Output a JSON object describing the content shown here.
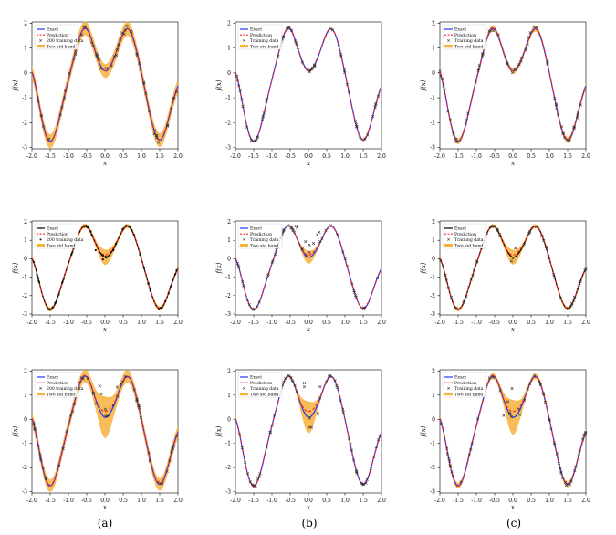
{
  "figure": {
    "subfigure_labels": [
      "(a)",
      "(b)",
      "(c)"
    ]
  },
  "colors": {
    "exact_black": "#000000",
    "exact_blue": "#1f35ff",
    "prediction": "#ff2020",
    "training": "#000000",
    "band": "#f7b23b"
  },
  "chart_data": [
    {
      "type": "line",
      "row": 1,
      "col": 1,
      "xlabel": "x",
      "ylabel": "f(x)",
      "xlim": [
        -2.0,
        2.0
      ],
      "ylim": [
        -3,
        2
      ],
      "xticks": [
        "-2.0",
        "-1.5",
        "-1.0",
        "-0.5",
        "0.0",
        "0.5",
        "1.0",
        "1.5",
        "2.0"
      ],
      "yticks": [
        "2",
        "1",
        "0",
        "-1",
        "-2",
        "-3"
      ],
      "legend": [
        "Exact",
        "Prediction",
        "200 training data",
        "Two std band"
      ],
      "exact_color": "exact_blue",
      "training_marker": "x",
      "outliers": 0,
      "noise": 0.14,
      "band": 0.28
    },
    {
      "type": "line",
      "row": 1,
      "col": 2,
      "xlabel": "x",
      "ylabel": "f(x)",
      "xlim": [
        -2.0,
        2.0
      ],
      "ylim": [
        -3,
        2
      ],
      "xticks": [
        "-2.0",
        "-1.5",
        "-1.0",
        "-0.5",
        "0.0",
        "0.5",
        "1.0",
        "1.5",
        "2.0"
      ],
      "yticks": [
        "2",
        "1",
        "0",
        "-1",
        "-2",
        "-3"
      ],
      "legend": [
        "Exact",
        "Prediction",
        "Training data",
        "Two std band"
      ],
      "exact_color": "exact_blue",
      "training_marker": "x",
      "outliers": 0,
      "noise": 0.05,
      "band": 0.06
    },
    {
      "type": "line",
      "row": 1,
      "col": 3,
      "xlabel": "x",
      "ylabel": "f(x)",
      "xlim": [
        -2.0,
        2.0
      ],
      "ylim": [
        -3,
        2
      ],
      "xticks": [
        "-2.0",
        "-1.5",
        "-1.0",
        "-0.5",
        "0.0",
        "0.5",
        "1.0",
        "1.5",
        "2.0"
      ],
      "yticks": [
        "2",
        "1",
        "0",
        "-1",
        "-2",
        "-3"
      ],
      "legend": [
        "Exact",
        "Prediction",
        "Training data",
        "Two std band"
      ],
      "exact_color": "exact_blue",
      "training_marker": "x",
      "outliers": 0,
      "noise": 0.1,
      "band": 0.12
    },
    {
      "type": "line",
      "row": 2,
      "col": 1,
      "xlabel": "x",
      "ylabel": "f(x)",
      "xlim": [
        -2.0,
        2.0
      ],
      "ylim": [
        -3,
        2
      ],
      "xticks": [
        "-2.0",
        "-1.5",
        "-1.0",
        "-0.5",
        "0.0",
        "0.5",
        "1.0",
        "1.5",
        "2.0"
      ],
      "yticks": [
        "2",
        "1",
        "0",
        "-1",
        "-2",
        "-3"
      ],
      "legend": [
        "Exact",
        "Prediction",
        "200 training data",
        "Two std band"
      ],
      "exact_color": "exact_black",
      "training_marker": "dot",
      "outliers": 1,
      "noise": 0.06,
      "band": 0.12
    },
    {
      "type": "line",
      "row": 2,
      "col": 2,
      "xlabel": "x",
      "ylabel": "f(x)",
      "xlim": [
        -2.0,
        2.0
      ],
      "ylim": [
        -3,
        2
      ],
      "xticks": [
        "-2.0",
        "-1.5",
        "-1.0",
        "-0.5",
        "0.0",
        "0.5",
        "1.0",
        "1.5",
        "2.0"
      ],
      "yticks": [
        "2",
        "1",
        "0",
        "-1",
        "-2",
        "-3"
      ],
      "legend": [
        "Exact",
        "Prediction",
        "Training data",
        "Two std band"
      ],
      "exact_color": "exact_blue",
      "training_marker": "x",
      "outliers": 1,
      "noise": 0.04,
      "band": 0.05
    },
    {
      "type": "line",
      "row": 2,
      "col": 3,
      "xlabel": "x",
      "ylabel": "f(x)",
      "xlim": [
        -2.0,
        2.0
      ],
      "ylim": [
        -3,
        2
      ],
      "xticks": [
        "-2.0",
        "-1.5",
        "-1.0",
        "-0.5",
        "0.0",
        "0.5",
        "1.0",
        "1.5",
        "2.0"
      ],
      "yticks": [
        "2",
        "1",
        "0",
        "-1",
        "-2",
        "-3"
      ],
      "legend": [
        "Exact",
        "Prediction",
        "Training data",
        "Two std band"
      ],
      "exact_color": "exact_black",
      "training_marker": "x",
      "outliers": 1,
      "noise": 0.05,
      "band": 0.1
    },
    {
      "type": "line",
      "row": 3,
      "col": 1,
      "xlabel": "x",
      "ylabel": "f(x)",
      "xlim": [
        -2.0,
        2.0
      ],
      "ylim": [
        -3,
        2
      ],
      "xticks": [
        "-2.0",
        "-1.5",
        "-1.0",
        "-0.5",
        "0.0",
        "0.5",
        "1.0",
        "1.5",
        "2.0"
      ],
      "yticks": [
        "2",
        "1",
        "0",
        "-1",
        "-2",
        "-3"
      ],
      "legend": [
        "Exact",
        "Prediction",
        "200 training data",
        "Two std band"
      ],
      "exact_color": "exact_blue",
      "training_marker": "x",
      "outliers": 2,
      "noise": 0.09,
      "band": 0.26
    },
    {
      "type": "line",
      "row": 3,
      "col": 2,
      "xlabel": "x",
      "ylabel": "f(x)",
      "xlim": [
        -2.0,
        2.0
      ],
      "ylim": [
        -3,
        2
      ],
      "xticks": [
        "-2.0",
        "-1.5",
        "-1.0",
        "-0.5",
        "0.0",
        "0.5",
        "1.0",
        "1.5",
        "2.0"
      ],
      "yticks": [
        "2",
        "1",
        "0",
        "-1",
        "-2",
        "-3"
      ],
      "legend": [
        "Exact",
        "Prediction",
        "Training data",
        "Two std band"
      ],
      "exact_color": "exact_blue",
      "training_marker": "x",
      "outliers": 2,
      "noise": 0.05,
      "band": 0.06
    },
    {
      "type": "line",
      "row": 3,
      "col": 3,
      "xlabel": "x",
      "ylabel": "f(x)",
      "xlim": [
        -2.0,
        2.0
      ],
      "ylim": [
        -3,
        2
      ],
      "xticks": [
        "-2.0",
        "-1.5",
        "-1.0",
        "-0.5",
        "0.0",
        "0.5",
        "1.0",
        "1.5",
        "2.0"
      ],
      "yticks": [
        "2",
        "1",
        "0",
        "-1",
        "-2",
        "-3"
      ],
      "legend": [
        "Exact",
        "Prediction",
        "Training data",
        "Two std band"
      ],
      "exact_color": "exact_blue",
      "training_marker": "x",
      "outliers": 2,
      "noise": 0.07,
      "band": 0.12
    }
  ]
}
